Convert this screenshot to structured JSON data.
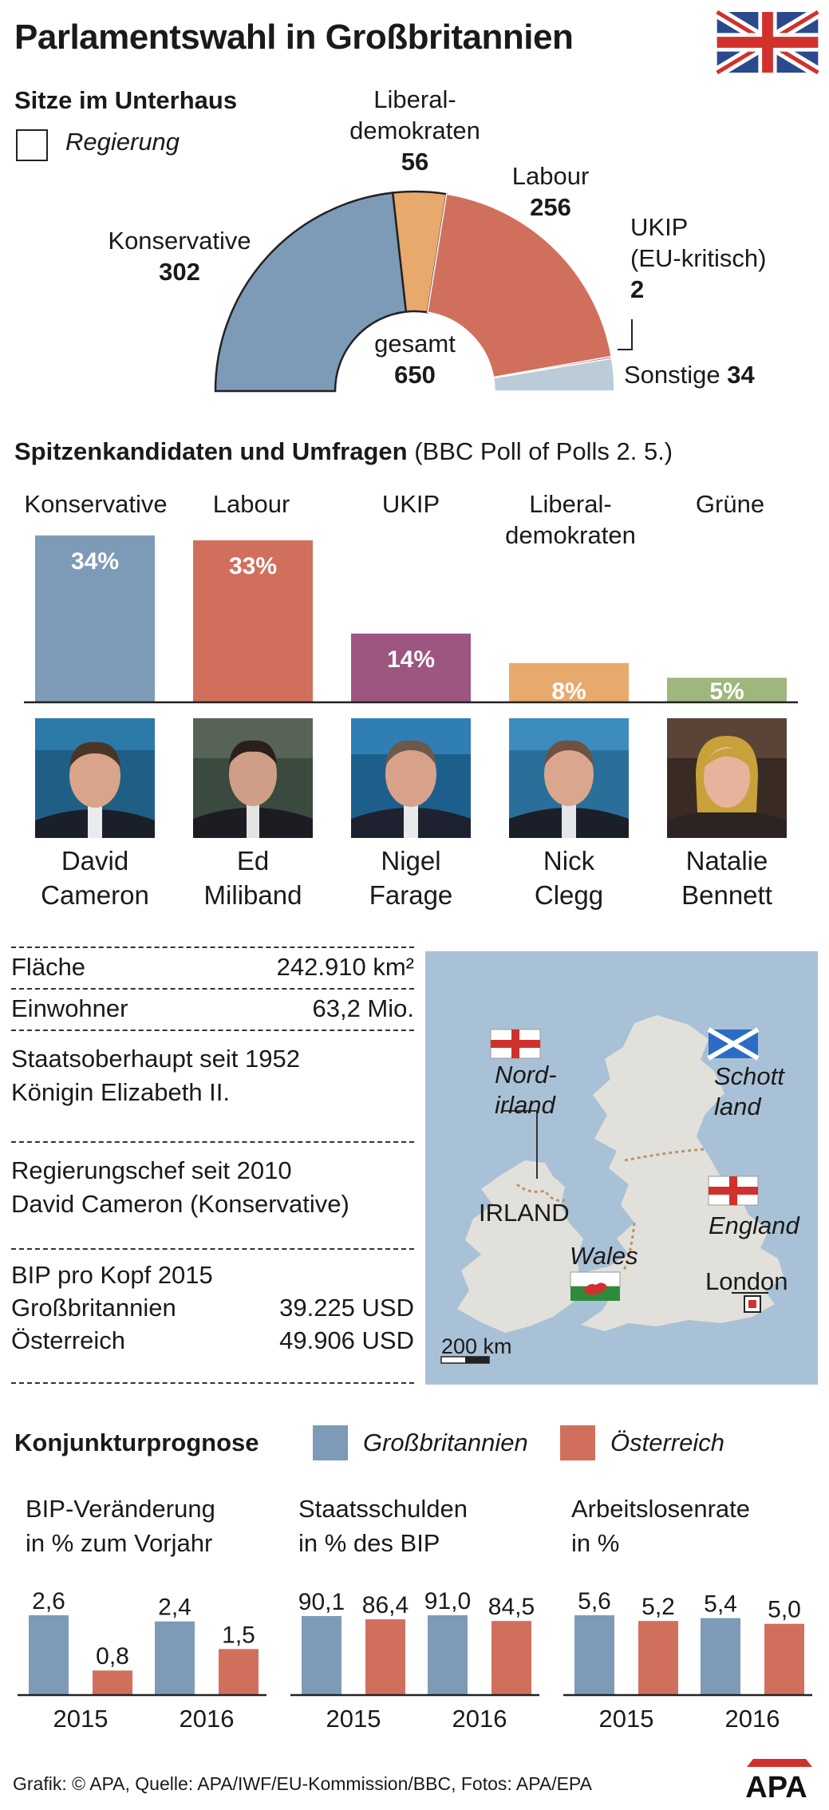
{
  "title": "Parlamentswahl in Großbritannien",
  "seats": {
    "heading": "Sitze im Unterhaus",
    "legend_government": "Regierung",
    "total_label": "gesamt",
    "total_value": "650",
    "parties": {
      "con": {
        "name": "Konservative",
        "value": "302"
      },
      "ld": {
        "name1": "Liberal-",
        "name2": "demokraten",
        "value": "56"
      },
      "lab": {
        "name": "Labour",
        "value": "256"
      },
      "ukip": {
        "name1": "UKIP",
        "name2": "(EU-kritisch)",
        "value": "2"
      },
      "oth": {
        "name": "Sonstige",
        "value": "34"
      }
    }
  },
  "polls": {
    "heading": "Spitzenkandidaten und Umfragen",
    "source": "(BBC Poll of Polls 2. 5.)",
    "parties": [
      {
        "name": "Konservative",
        "pct": "34%",
        "candidate1": "David",
        "candidate2": "Cameron"
      },
      {
        "name": "Labour",
        "pct": "33%",
        "candidate1": "Ed",
        "candidate2": "Miliband"
      },
      {
        "name": "UKIP",
        "pct": "14%",
        "candidate1": "Nigel",
        "candidate2": "Farage"
      },
      {
        "name1": "Liberal-",
        "name2": "demokraten",
        "pct": "8%",
        "candidate1": "Nick",
        "candidate2": "Clegg"
      },
      {
        "name": "Grüne",
        "pct": "5%",
        "candidate1": "Natalie",
        "candidate2": "Bennett"
      }
    ]
  },
  "facts": {
    "area_label": "Fläche",
    "area_value": "242.910 km²",
    "pop_label": "Einwohner",
    "pop_value": "63,2 Mio.",
    "head_line1": "Staatsoberhaupt seit 1952",
    "head_line2": "Königin Elizabeth II.",
    "gov_line1": "Regierungschef seit 2010",
    "gov_line2": "David Cameron (Konservative)",
    "gdp_heading": "BIP pro Kopf 2015",
    "gdp_uk_label": "Großbritannien",
    "gdp_uk_value": "39.225 USD",
    "gdp_at_label": "Österreich",
    "gdp_at_value": "49.906 USD"
  },
  "map": {
    "nordirland1": "Nord-",
    "nordirland2": "irland",
    "schottland1": "Schott",
    "schottland2": "land",
    "irland": "IRLAND",
    "england": "England",
    "wales": "Wales",
    "london": "London",
    "scale": "200 km"
  },
  "economy": {
    "heading": "Konjunkturprognose",
    "legend_uk": "Großbritannien",
    "legend_at": "Österreich",
    "colors": {
      "uk": "#7d9bb6",
      "at": "#d16f5d"
    }
  },
  "chart_data": [
    {
      "type": "pie",
      "title": "Sitze im Unterhaus",
      "categories": [
        "Konservative",
        "Liberaldemokraten",
        "Labour",
        "UKIP (EU-kritisch)",
        "Sonstige"
      ],
      "values": [
        302,
        56,
        256,
        2,
        34
      ],
      "total": 650,
      "government": [
        "Konservative",
        "Liberaldemokraten"
      ],
      "colors": [
        "#7d9bb6",
        "#e8aa6c",
        "#d16f5d",
        "#a35580",
        "#bccbd8"
      ]
    },
    {
      "type": "bar",
      "title": "Spitzenkandidaten und Umfragen (BBC Poll of Polls 2. 5.)",
      "categories": [
        "Konservative",
        "Labour",
        "UKIP",
        "Liberaldemokraten",
        "Grüne"
      ],
      "values": [
        34,
        33,
        14,
        8,
        5
      ],
      "unit": "%",
      "colors": [
        "#7d9bb6",
        "#d16f5d",
        "#9c5680",
        "#e8aa6c",
        "#9fb67c"
      ]
    },
    {
      "type": "bar",
      "title": "BIP-Veränderung in % zum Vorjahr",
      "title1": "BIP-Veränderung",
      "title2": "in % zum Vorjahr",
      "categories": [
        "2015",
        "2016"
      ],
      "series": [
        {
          "name": "Großbritannien",
          "values": [
            2.6,
            2.4
          ],
          "labels": [
            "2,6",
            "2,4"
          ]
        },
        {
          "name": "Österreich",
          "values": [
            0.8,
            1.5
          ],
          "labels": [
            "0,8",
            "1,5"
          ]
        }
      ]
    },
    {
      "type": "bar",
      "title": "Staatsschulden in % des BIP",
      "title1": "Staatsschulden",
      "title2": "in % des BIP",
      "categories": [
        "2015",
        "2016"
      ],
      "series": [
        {
          "name": "Großbritannien",
          "values": [
            90.1,
            91.0
          ],
          "labels": [
            "90,1",
            "91,0"
          ]
        },
        {
          "name": "Österreich",
          "values": [
            86.4,
            84.5
          ],
          "labels": [
            "86,4",
            "84,5"
          ]
        }
      ]
    },
    {
      "type": "bar",
      "title": "Arbeitslosenrate in %",
      "title1": "Arbeitslosenrate",
      "title2": "in %",
      "categories": [
        "2015",
        "2016"
      ],
      "series": [
        {
          "name": "Großbritannien",
          "values": [
            5.6,
            5.4
          ],
          "labels": [
            "5,6",
            "5,4"
          ]
        },
        {
          "name": "Österreich",
          "values": [
            5.2,
            5.0
          ],
          "labels": [
            "5,2",
            "5,0"
          ]
        }
      ]
    }
  ],
  "footer": {
    "credit": "Grafik: © APA, Quelle: APA/IWF/EU-Kommission/BBC, Fotos: APA/EPA",
    "logo": "APA"
  }
}
